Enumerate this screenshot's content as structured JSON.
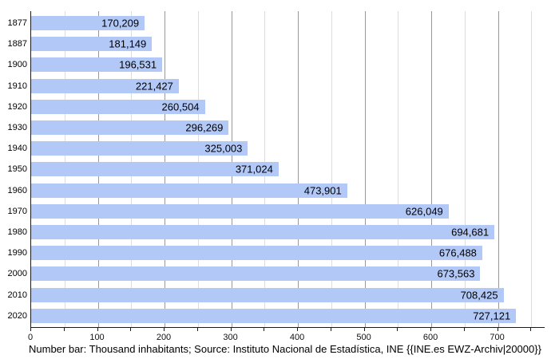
{
  "chart_data": {
    "type": "bar",
    "orientation": "horizontal",
    "categories": [
      "1877",
      "1887",
      "1900",
      "1910",
      "1920",
      "1930",
      "1940",
      "1950",
      "1960",
      "1970",
      "1980",
      "1990",
      "2000",
      "2010",
      "2020"
    ],
    "values": [
      170209,
      181149,
      196531,
      221427,
      260504,
      296269,
      325003,
      371024,
      473901,
      626049,
      694681,
      676488,
      673563,
      708425,
      727121
    ],
    "value_labels": [
      "170,209",
      "181,149",
      "196,531",
      "221,427",
      "260,504",
      "296,269",
      "325,003",
      "371,024",
      "473,901",
      "626,049",
      "694,681",
      "676,488",
      "673,563",
      "708,425",
      "727,121"
    ],
    "x_axis": {
      "tick_values": [
        0,
        100,
        200,
        300,
        400,
        500,
        600,
        700
      ],
      "tick_labels": [
        "0",
        "100",
        "200",
        "300",
        "400",
        "500",
        "600",
        "700"
      ],
      "minor_step": 50,
      "major_step": 100,
      "range": [
        0,
        770
      ],
      "unit": "thousand inhabitants"
    },
    "grid": {
      "vertical_major": true,
      "vertical_minor": true,
      "horizontal": false
    },
    "legend": "none",
    "title": "",
    "caption": "Number bar: Thousand inhabitants; Source: Instituto Nacional de Estadística, INE {{INE.es EWZ-Archiv|20000}}",
    "colors": {
      "bar_fill": "#b2c8f7",
      "grid_major": "#999999",
      "grid_minor": "#dddddd",
      "axis": "#1a1a1a",
      "text": "#000000",
      "background": "#ffffff"
    }
  }
}
